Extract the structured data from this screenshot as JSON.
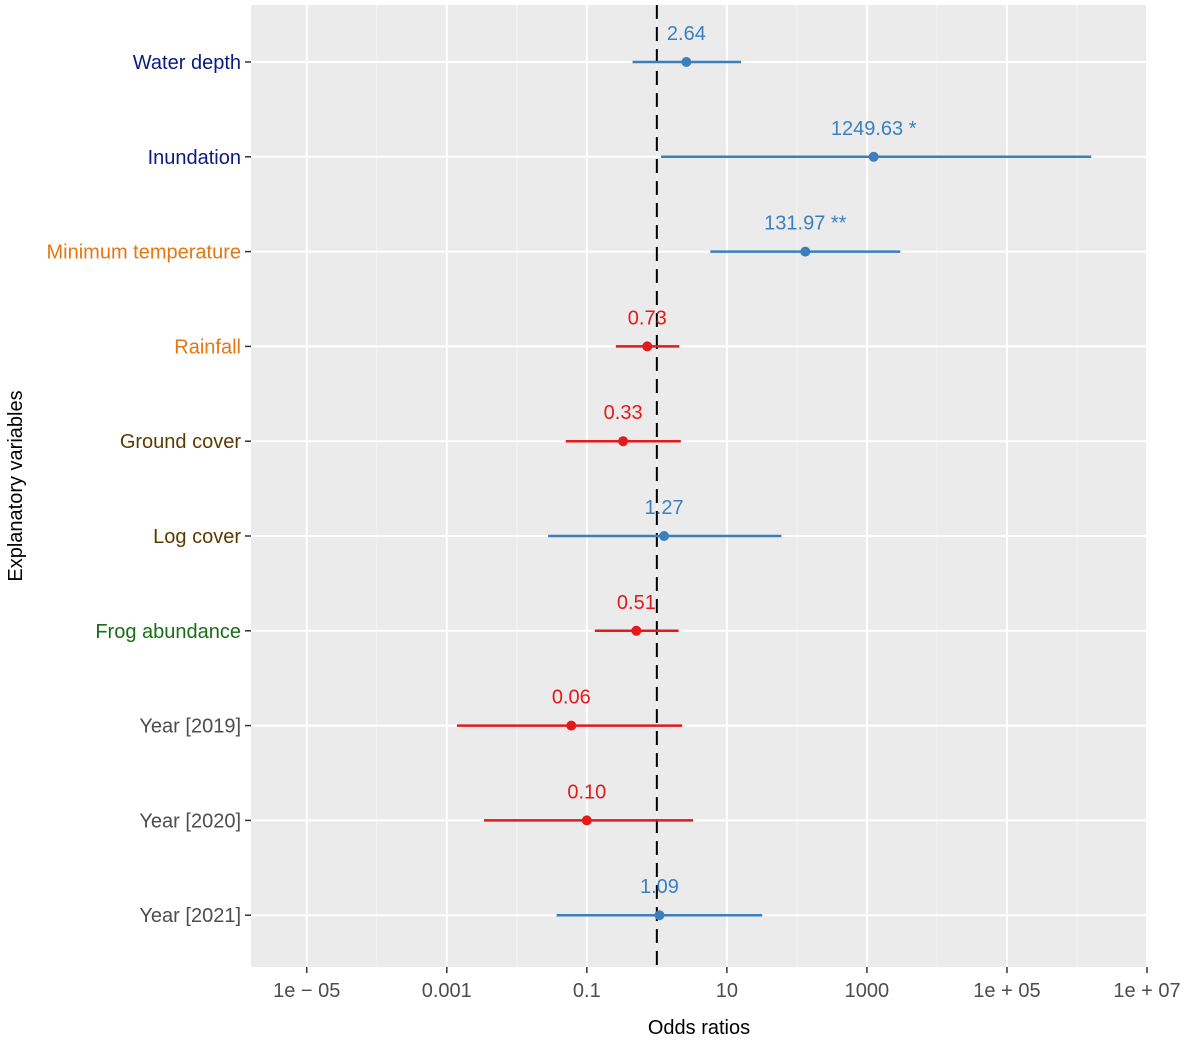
{
  "chart_data": {
    "type": "scatter",
    "subtype": "forest-plot",
    "xlabel": "Odds ratios",
    "ylabel": "Explanatory variables",
    "x_scale": "log10",
    "xlim": [
      1.6e-06,
      10000000.0
    ],
    "x_ticks": [
      {
        "value": 1e-05,
        "label": "1e − 05"
      },
      {
        "value": 0.001,
        "label": "0.001"
      },
      {
        "value": 0.1,
        "label": "0.1"
      },
      {
        "value": 10,
        "label": "10"
      },
      {
        "value": 1000,
        "label": "1000"
      },
      {
        "value": 100000,
        "label": "1e + 05"
      },
      {
        "value": 10000000,
        "label": "1e + 07"
      }
    ],
    "reference_line": {
      "x": 1,
      "style": "dashed",
      "color": "#000000"
    },
    "grid": true,
    "panel_background": "#EBEBEB",
    "series_colors": {
      "positive": "#3A80BF",
      "negative": "#E31A1C"
    },
    "rows": [
      {
        "label": "Water depth",
        "label_color": "#0B1A80",
        "or": 2.64,
        "ci": [
          0.45,
          16.0
        ],
        "display": "2.64",
        "direction": "positive"
      },
      {
        "label": "Inundation",
        "label_color": "#0B1A80",
        "or": 1249.63,
        "ci": [
          1.15,
          1600000
        ],
        "display": "1249.63 *",
        "direction": "positive"
      },
      {
        "label": "Minimum temperature",
        "label_color": "#E8760E",
        "or": 131.97,
        "ci": [
          5.8,
          3000
        ],
        "display": "131.97 **",
        "direction": "positive"
      },
      {
        "label": "Rainfall",
        "label_color": "#E8760E",
        "or": 0.73,
        "ci": [
          0.26,
          2.1
        ],
        "display": "0.73",
        "direction": "negative"
      },
      {
        "label": "Ground cover",
        "label_color": "#5C3A00",
        "or": 0.33,
        "ci": [
          0.05,
          2.2
        ],
        "display": "0.33",
        "direction": "negative"
      },
      {
        "label": "Log cover",
        "label_color": "#5C3A00",
        "or": 1.27,
        "ci": [
          0.028,
          60
        ],
        "display": "1.27",
        "direction": "positive"
      },
      {
        "label": "Frog abundance",
        "label_color": "#1A6E12",
        "or": 0.51,
        "ci": [
          0.13,
          2.05
        ],
        "display": "0.51",
        "direction": "negative"
      },
      {
        "label": "Year [2019]",
        "label_color": "#4D4D4D",
        "or": 0.06,
        "ci": [
          0.0014,
          2.3
        ],
        "display": "0.06",
        "direction": "negative"
      },
      {
        "label": "Year [2020]",
        "label_color": "#4D4D4D",
        "or": 0.1,
        "ci": [
          0.0034,
          3.3
        ],
        "display": "0.10",
        "direction": "negative"
      },
      {
        "label": "Year [2021]",
        "label_color": "#4D4D4D",
        "or": 1.09,
        "ci": [
          0.037,
          32
        ],
        "display": "1.09",
        "direction": "positive"
      }
    ]
  }
}
